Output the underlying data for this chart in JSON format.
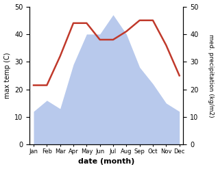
{
  "months": [
    "Jan",
    "Feb",
    "Mar",
    "Apr",
    "May",
    "Jun",
    "Jul",
    "Aug",
    "Sep",
    "Oct",
    "Nov",
    "Dec"
  ],
  "temperature": [
    21.5,
    21.5,
    32,
    44,
    44,
    38,
    38,
    41,
    45,
    45,
    36,
    25
  ],
  "precipitation": [
    12,
    16,
    13,
    29,
    40,
    40,
    47,
    40,
    28,
    22,
    15,
    12
  ],
  "temp_color": "#c0392b",
  "precip_color_fill": "#b8c9ec",
  "temp_ylim": [
    0,
    50
  ],
  "precip_ylim": [
    0,
    50
  ],
  "left_ticks": [
    0,
    10,
    20,
    30,
    40,
    50
  ],
  "right_ticks": [
    0,
    10,
    20,
    30,
    40,
    50
  ],
  "xlabel": "date (month)",
  "ylabel_left": "max temp (C)",
  "ylabel_right": "med. precipitation (kg/m2)"
}
